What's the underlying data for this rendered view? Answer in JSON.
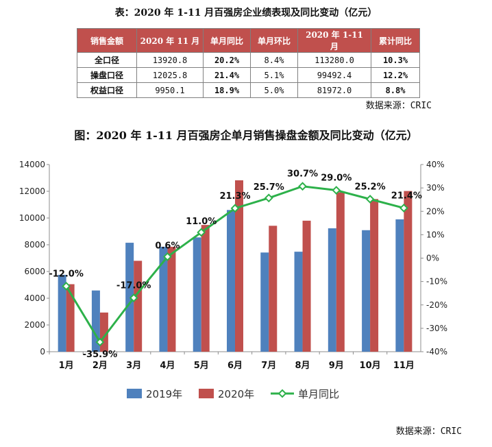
{
  "table": {
    "title": "表：2020 年 1-11 月百强房企业绩表现及同比变动（亿元）",
    "headers": [
      "销售金额",
      "2020 年 11 月",
      "单月同比",
      "单月环比",
      "2020 年 1-11 月",
      "累计同比"
    ],
    "rows": [
      [
        "全口径",
        "13920.8",
        "20.2%",
        "8.4%",
        "113280.0",
        "10.3%"
      ],
      [
        "操盘口径",
        "12025.8",
        "21.4%",
        "5.1%",
        "99492.4",
        "12.2%"
      ],
      [
        "权益口径",
        "9950.1",
        "18.9%",
        "5.0%",
        "81972.0",
        "8.8%"
      ]
    ],
    "source": "数据来源：CRIC"
  },
  "chart_data": {
    "type": "bar",
    "title": "图：2020 年 1-11 月百强房企单月销售操盘金额及同比变动（亿元）",
    "categories": [
      "1月",
      "2月",
      "3月",
      "4月",
      "5月",
      "6月",
      "7月",
      "8月",
      "9月",
      "10月",
      "11月"
    ],
    "series": [
      {
        "name": "2019年",
        "type": "bar",
        "axis": "left",
        "color": "#4f81bd",
        "values": [
          5750,
          4580,
          8150,
          7850,
          8550,
          10600,
          7420,
          7480,
          9230,
          9090,
          9900
        ]
      },
      {
        "name": "2020年",
        "type": "bar",
        "axis": "left",
        "color": "#c0504d",
        "values": [
          5050,
          2930,
          6800,
          7850,
          9480,
          12820,
          9420,
          9800,
          11920,
          11420,
          12020
        ]
      },
      {
        "name": "单月同比",
        "type": "line",
        "axis": "right",
        "color": "#2db14a",
        "values": [
          -12.0,
          -35.9,
          -17.0,
          0.6,
          11.0,
          21.3,
          25.7,
          30.7,
          29.0,
          25.2,
          21.4
        ],
        "labels": [
          "-12.0%",
          "-35.9%",
          "-17.0%",
          "0.6%",
          "11.0%",
          "21.3%",
          "25.7%",
          "30.7%",
          "29.0%",
          "25.2%",
          "21.4%"
        ]
      }
    ],
    "left_axis": {
      "min": 0,
      "max": 14000,
      "ticks": [
        "0",
        "2000",
        "4000",
        "6000",
        "8000",
        "10000",
        "12000",
        "14000"
      ]
    },
    "right_axis": {
      "min": -40,
      "max": 40,
      "ticks": [
        "-40%",
        "-30%",
        "-20%",
        "-10%",
        "0%",
        "10%",
        "20%",
        "30%",
        "40%"
      ]
    },
    "legend_position": "bottom",
    "source": "数据来源：CRIC"
  }
}
